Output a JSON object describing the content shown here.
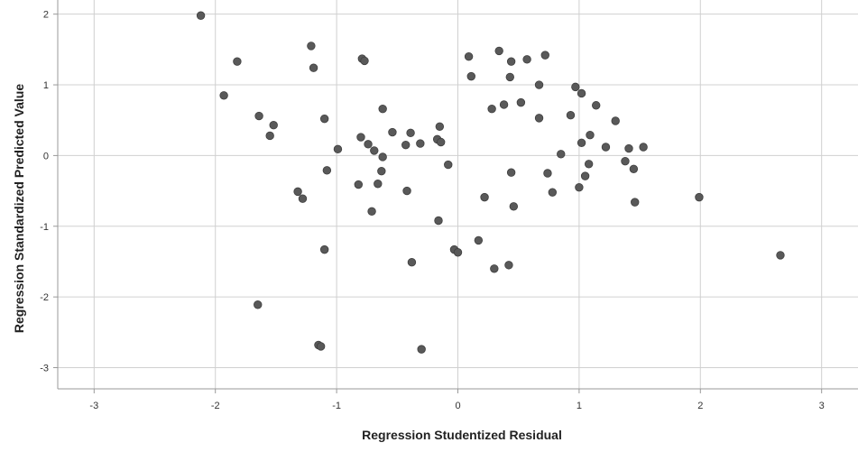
{
  "chart_data": {
    "type": "scatter",
    "xlabel": "Regression Studentized Residual",
    "ylabel": "Regression Standardized Predicted Value",
    "xlim": [
      -3.3,
      3.3
    ],
    "ylim": [
      -3.3,
      2.2
    ],
    "xticks": [
      -3,
      -2,
      -1,
      0,
      1,
      2,
      3
    ],
    "yticks": [
      -3,
      -2,
      -1,
      0,
      1,
      2
    ],
    "xtick_labels": [
      "-3",
      "-2",
      "-1",
      "0",
      "1",
      "2",
      "3"
    ],
    "ytick_labels": [
      "-3",
      "-2",
      "-1",
      "0",
      "1",
      "2"
    ],
    "grid": true,
    "colors": {
      "point": "#595959",
      "grid": "#d0d0d0",
      "axis": "#999999"
    },
    "points": [
      [
        -2.12,
        1.98
      ],
      [
        -1.93,
        0.85
      ],
      [
        -1.82,
        1.33
      ],
      [
        -1.64,
        0.56
      ],
      [
        -1.55,
        0.28
      ],
      [
        -1.52,
        0.43
      ],
      [
        -1.65,
        -2.11
      ],
      [
        -1.32,
        -0.51
      ],
      [
        -1.28,
        -0.61
      ],
      [
        -1.21,
        1.55
      ],
      [
        -1.19,
        1.24
      ],
      [
        -1.1,
        0.52
      ],
      [
        -1.08,
        -0.21
      ],
      [
        -1.1,
        -1.33
      ],
      [
        -1.15,
        -2.68
      ],
      [
        -1.13,
        -2.7
      ],
      [
        -0.99,
        0.09
      ],
      [
        -0.82,
        -0.41
      ],
      [
        -0.8,
        0.26
      ],
      [
        -0.79,
        1.37
      ],
      [
        -0.77,
        1.34
      ],
      [
        -0.74,
        0.16
      ],
      [
        -0.69,
        0.07
      ],
      [
        -0.71,
        -0.79
      ],
      [
        -0.66,
        -0.4
      ],
      [
        -0.63,
        -0.22
      ],
      [
        -0.62,
        -0.02
      ],
      [
        -0.62,
        0.66
      ],
      [
        -0.54,
        0.33
      ],
      [
        -0.43,
        0.15
      ],
      [
        -0.42,
        -0.5
      ],
      [
        -0.39,
        0.32
      ],
      [
        -0.38,
        -1.51
      ],
      [
        -0.31,
        0.17
      ],
      [
        -0.3,
        -2.74
      ],
      [
        -0.17,
        0.23
      ],
      [
        -0.15,
        0.41
      ],
      [
        -0.14,
        0.19
      ],
      [
        -0.16,
        -0.92
      ],
      [
        -0.08,
        -0.13
      ],
      [
        -0.03,
        -1.33
      ],
      [
        0.0,
        -1.37
      ],
      [
        0.09,
        1.4
      ],
      [
        0.11,
        1.12
      ],
      [
        0.17,
        -1.2
      ],
      [
        0.22,
        -0.59
      ],
      [
        0.28,
        0.66
      ],
      [
        0.3,
        -1.6
      ],
      [
        0.34,
        1.48
      ],
      [
        0.38,
        0.72
      ],
      [
        0.42,
        -1.55
      ],
      [
        0.43,
        1.11
      ],
      [
        0.44,
        1.33
      ],
      [
        0.44,
        -0.24
      ],
      [
        0.46,
        -0.72
      ],
      [
        0.52,
        0.75
      ],
      [
        0.57,
        1.36
      ],
      [
        0.67,
        1.0
      ],
      [
        0.67,
        0.53
      ],
      [
        0.72,
        1.42
      ],
      [
        0.74,
        -0.25
      ],
      [
        0.78,
        -0.52
      ],
      [
        0.85,
        0.02
      ],
      [
        0.93,
        0.57
      ],
      [
        0.97,
        0.97
      ],
      [
        1.0,
        -0.45
      ],
      [
        1.02,
        0.88
      ],
      [
        1.02,
        0.18
      ],
      [
        1.05,
        -0.29
      ],
      [
        1.08,
        -0.12
      ],
      [
        1.09,
        0.29
      ],
      [
        1.14,
        0.71
      ],
      [
        1.22,
        0.12
      ],
      [
        1.3,
        0.49
      ],
      [
        1.38,
        -0.08
      ],
      [
        1.41,
        0.1
      ],
      [
        1.45,
        -0.19
      ],
      [
        1.46,
        -0.66
      ],
      [
        1.53,
        0.12
      ],
      [
        1.99,
        -0.59
      ],
      [
        2.66,
        -1.41
      ]
    ]
  }
}
